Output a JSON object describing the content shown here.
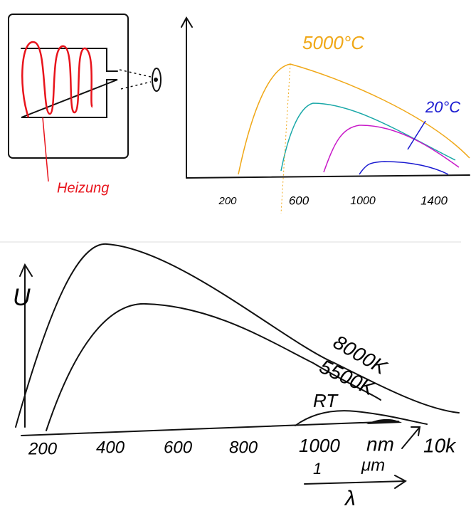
{
  "top": {
    "heater_label": "Heizung",
    "curve_labels": [
      "5000°C",
      "20°C"
    ],
    "x_labels": [
      "200",
      "600",
      "1000",
      "1400"
    ]
  },
  "bottom": {
    "y_axis_label": "U",
    "x_labels": [
      "200",
      "400",
      "600",
      "800",
      "1000",
      "nm",
      "10k"
    ],
    "curve_labels": [
      "8000K",
      "5500K",
      "RT"
    ],
    "wavelength": [
      "1",
      "μm",
      "λ"
    ]
  }
}
